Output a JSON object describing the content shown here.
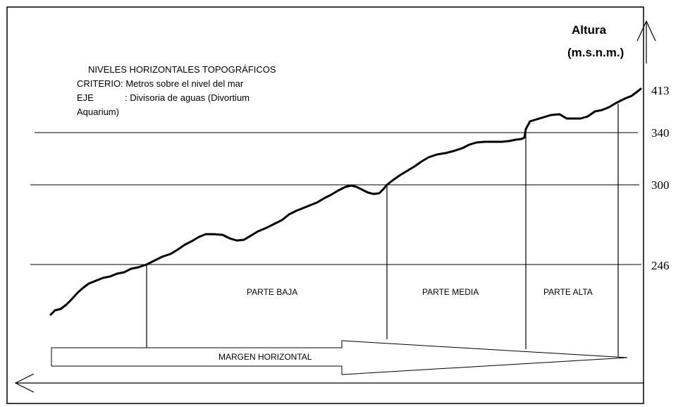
{
  "axis": {
    "title_line1": "Altura",
    "title_line2": "(m.s.n.m.)"
  },
  "legend": {
    "line1": "NIVELES HORIZONTALES TOPOGRÁFICOS",
    "line2": "CRITERIO: Metros sobre el nivel del mar",
    "line3_key": "EJE",
    "line3_value": ": Divisoria de aguas (Divortium",
    "line4": "Aquarium)"
  },
  "levels": [
    {
      "label": "413",
      "value": 413
    },
    {
      "label": "340",
      "value": 340
    },
    {
      "label": "300",
      "value": 300
    },
    {
      "label": "246",
      "value": 246
    }
  ],
  "zones": {
    "low": "PARTE BAJA",
    "mid": "PARTE MEDIA",
    "high": "PARTE ALTA"
  },
  "arrow_label": "MARGEN HORIZONTAL"
}
